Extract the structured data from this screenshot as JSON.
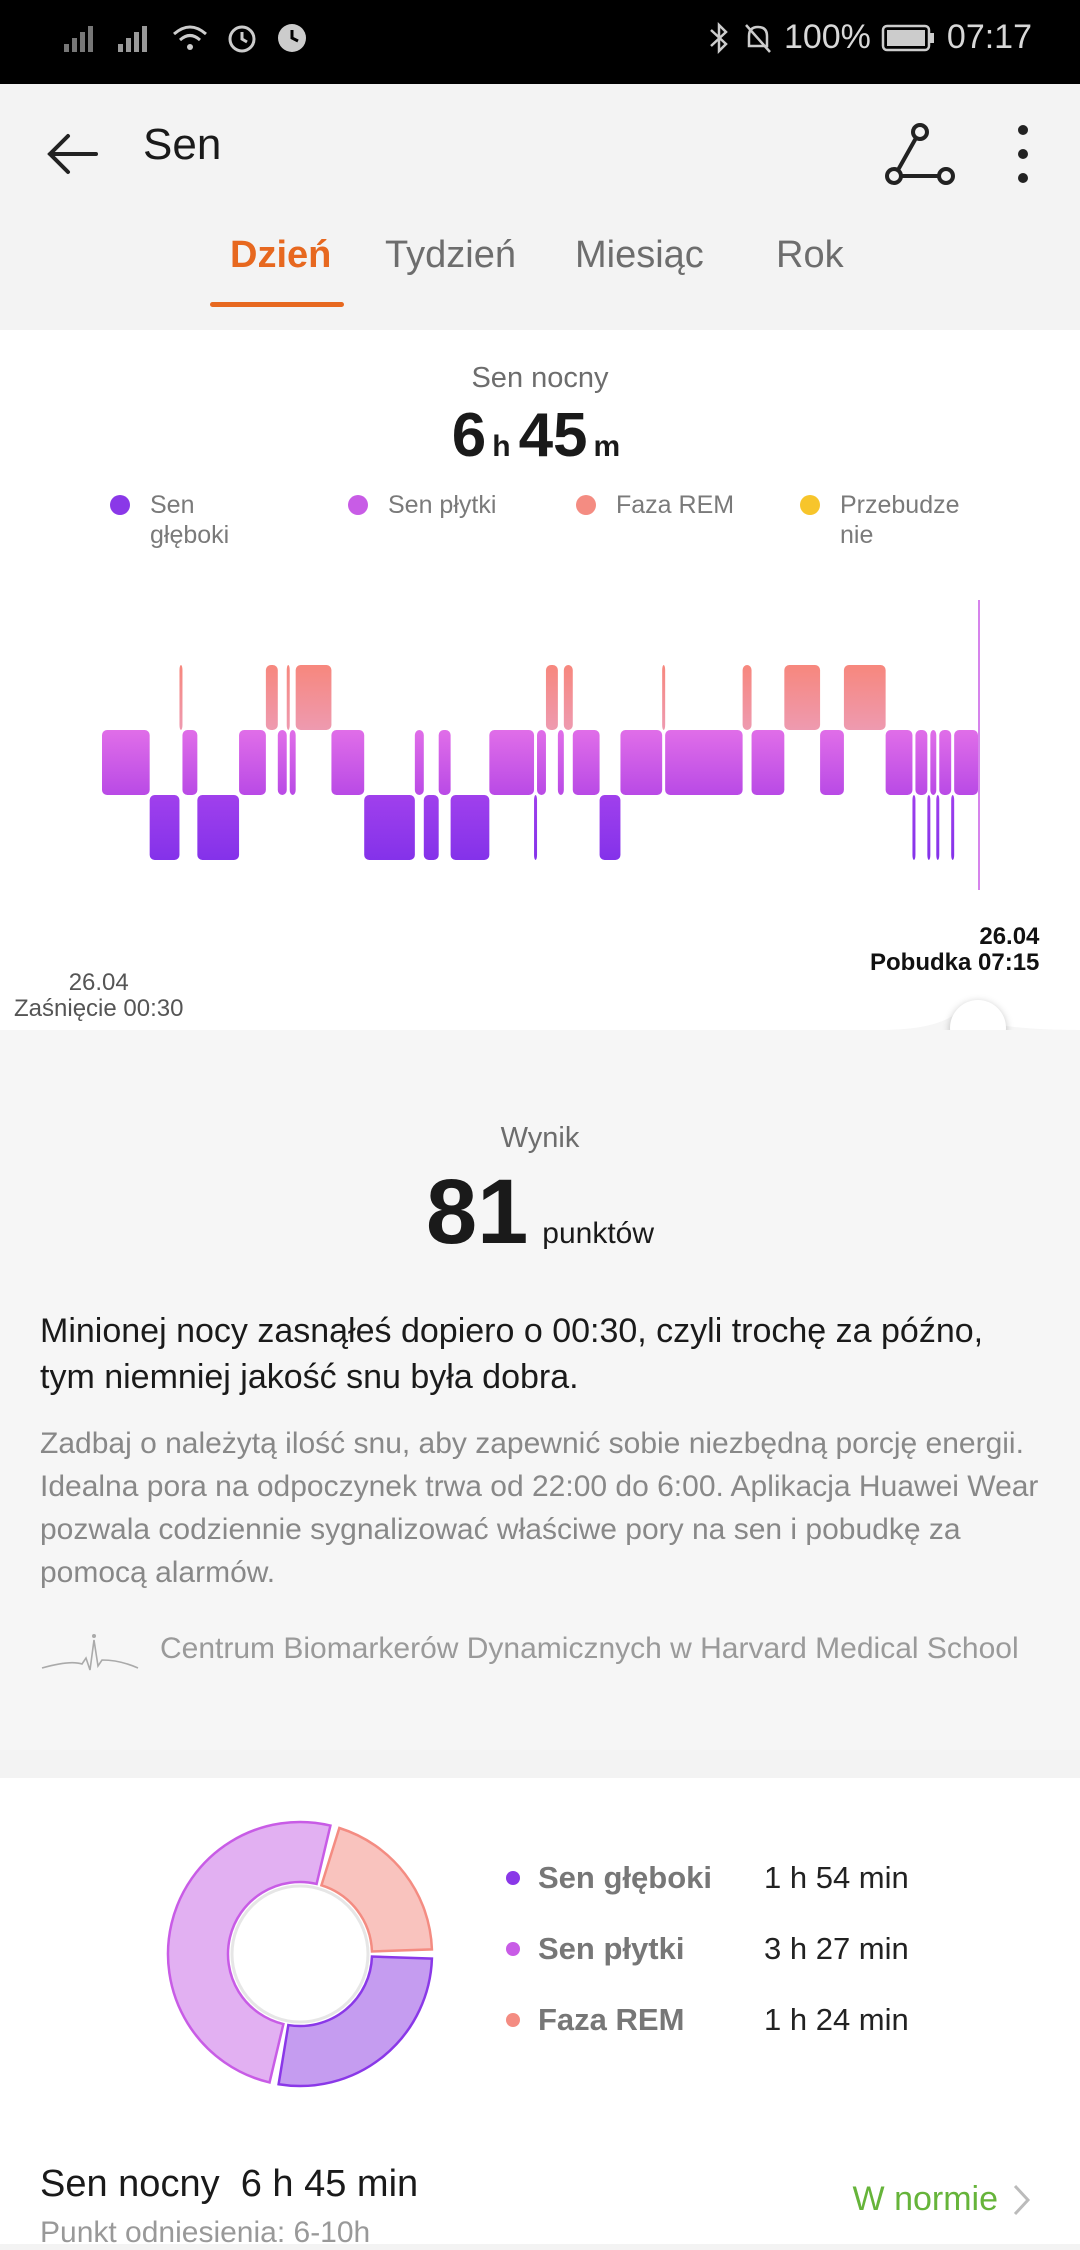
{
  "status_bar": {
    "battery": "100%",
    "time": "07:17"
  },
  "header": {
    "title": "Sen"
  },
  "tabs": [
    {
      "label": "Dzień",
      "active": true
    },
    {
      "label": "Tydzień",
      "active": false
    },
    {
      "label": "Miesiąc",
      "active": false
    },
    {
      "label": "Rok",
      "active": false
    }
  ],
  "night_sleep": {
    "label": "Sen nocny",
    "hours": "6",
    "hours_unit": "h",
    "minutes": "45",
    "minutes_unit": "m"
  },
  "legend": [
    {
      "label": "Sen\ngłęboki",
      "color": "#8a38e8"
    },
    {
      "label": "Sen płytki",
      "color": "#c85ce6"
    },
    {
      "label": "Faza REM",
      "color": "#f48c82"
    },
    {
      "label": "Przebudze\nnie",
      "color": "#f7c52b"
    }
  ],
  "chart": {
    "start_date": "26.04",
    "start_label": "Zaśnięcie 00:30",
    "end_date": "26.04",
    "end_label": "Pobudka 07:15"
  },
  "score": {
    "label": "Wynik",
    "value": "81",
    "unit": "punktów",
    "summary": "Minionej nocy zasnąłeś dopiero o 00:30, czyli trochę za późno, tym niemniej jakość snu była dobra.",
    "advice": "Zadbaj o należytą ilość snu, aby zapewnić sobie niezbędną porcję energii. Idealna pora na odpoczynek trwa od 22:00 do 6:00. Aplikacja Huawei Wear pozwala codziennie sygnalizować właściwe pory na sen i pobudkę za pomocą alarmów.",
    "source": "Centrum Biomarkerów Dynamicznych w Harvard Medical School"
  },
  "breakdown": [
    {
      "label": "Sen głęboki",
      "value": "1 h 54 min",
      "color": "#8a38e8",
      "ring_color": "#c59cf0"
    },
    {
      "label": "Sen płytki",
      "value": "3 h 27 min",
      "color": "#c85ce6",
      "ring_color": "#e2b0f2"
    },
    {
      "label": "Faza REM",
      "value": "1 h 24 min",
      "color": "#f48c82",
      "ring_color": "#f9c3be"
    }
  ],
  "footer": {
    "night_label": "Sen nocny",
    "night_value": "6 h 45 min",
    "reference": "Punkt odniesienia: 6-10h",
    "status": "W normie"
  },
  "chart_data": {
    "type": "bar",
    "levels": [
      "Faza REM",
      "Sen płytki",
      "Sen głęboki"
    ],
    "segments": [
      {
        "start": "00:30",
        "end": "00:46",
        "stage": "Sen płytki"
      },
      {
        "start": "00:46",
        "end": "00:56",
        "stage": "Sen głęboki"
      },
      {
        "start": "00:56",
        "end": "00:57",
        "stage": "Faza REM"
      },
      {
        "start": "00:57",
        "end": "01:02",
        "stage": "Sen płytki"
      },
      {
        "start": "01:02",
        "end": "01:16",
        "stage": "Sen głęboki"
      },
      {
        "start": "01:16",
        "end": "01:25",
        "stage": "Sen płytki"
      },
      {
        "start": "01:25",
        "end": "01:29",
        "stage": "Faza REM"
      },
      {
        "start": "01:29",
        "end": "01:32",
        "stage": "Sen płytki"
      },
      {
        "start": "01:32",
        "end": "01:33",
        "stage": "Faza REM"
      },
      {
        "start": "01:33",
        "end": "01:35",
        "stage": "Sen płytki"
      },
      {
        "start": "01:35",
        "end": "01:47",
        "stage": "Faza REM"
      },
      {
        "start": "01:47",
        "end": "01:58",
        "stage": "Sen płytki"
      },
      {
        "start": "01:58",
        "end": "02:15",
        "stage": "Sen głęboki"
      },
      {
        "start": "02:15",
        "end": "02:18",
        "stage": "Sen płytki"
      },
      {
        "start": "02:18",
        "end": "02:23",
        "stage": "Sen głęboki"
      },
      {
        "start": "02:23",
        "end": "02:27",
        "stage": "Sen płytki"
      },
      {
        "start": "02:27",
        "end": "02:40",
        "stage": "Sen głęboki"
      },
      {
        "start": "02:40",
        "end": "02:55",
        "stage": "Sen płytki"
      },
      {
        "start": "02:55",
        "end": "02:56",
        "stage": "Sen głęboki"
      },
      {
        "start": "02:56",
        "end": "02:59",
        "stage": "Sen płytki"
      },
      {
        "start": "02:59",
        "end": "03:03",
        "stage": "Faza REM"
      },
      {
        "start": "03:03",
        "end": "03:05",
        "stage": "Sen płytki"
      },
      {
        "start": "03:05",
        "end": "03:08",
        "stage": "Faza REM"
      },
      {
        "start": "03:08",
        "end": "03:17",
        "stage": "Sen płytki"
      },
      {
        "start": "03:17",
        "end": "03:24",
        "stage": "Sen głęboki"
      },
      {
        "start": "03:24",
        "end": "03:38",
        "stage": "Sen płytki"
      },
      {
        "start": "03:38",
        "end": "03:39",
        "stage": "Faza REM"
      },
      {
        "start": "03:39",
        "end": "04:05",
        "stage": "Sen płytki"
      },
      {
        "start": "04:05",
        "end": "04:08",
        "stage": "Faza REM"
      },
      {
        "start": "04:08",
        "end": "04:19",
        "stage": "Sen płytki"
      },
      {
        "start": "04:19",
        "end": "04:31",
        "stage": "Faza REM"
      },
      {
        "start": "04:31",
        "end": "04:39",
        "stage": "Sen płytki"
      },
      {
        "start": "04:39",
        "end": "04:53",
        "stage": "Faza REM"
      },
      {
        "start": "04:53",
        "end": "05:02",
        "stage": "Sen płytki"
      },
      {
        "start": "05:02",
        "end": "05:03",
        "stage": "Sen głęboki"
      },
      {
        "start": "05:03",
        "end": "05:07",
        "stage": "Sen płytki"
      },
      {
        "start": "05:07",
        "end": "05:08",
        "stage": "Sen głęboki"
      },
      {
        "start": "05:08",
        "end": "05:10",
        "stage": "Sen płytki"
      },
      {
        "start": "05:10",
        "end": "05:11",
        "stage": "Sen głęboki"
      },
      {
        "start": "05:11",
        "end": "05:15",
        "stage": "Sen płytki"
      },
      {
        "start": "05:15",
        "end": "05:16",
        "stage": "Sen głęboki"
      },
      {
        "start": "05:16",
        "end": "05:24",
        "stage": "Sen płytki"
      }
    ]
  }
}
